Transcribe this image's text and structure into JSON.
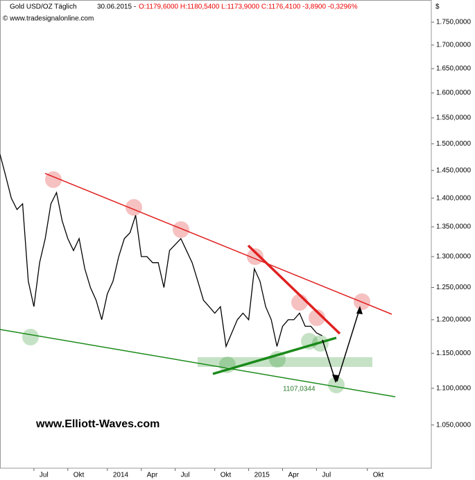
{
  "chart_data": {
    "type": "line",
    "instrument": "Gold USD/OZ Täglich",
    "date": "30.06.2015 -",
    "quote": "O:1179,6000 H:1180,5400 L:1173,9000 C:1176,4100 -3,8900 -0,3296%",
    "source": "© www.tradesignalonline.com",
    "y_unit": "$",
    "watermark": "www.Elliott-Waves.com",
    "annotation": "1107,0344",
    "log_scale": true,
    "grid": false,
    "color": "#000000",
    "categories": [
      null,
      null,
      null,
      null,
      null,
      null,
      "Jul",
      null,
      null,
      null,
      null,
      null,
      "Okt",
      null,
      null,
      null,
      null,
      null,
      null,
      "2014",
      null,
      null,
      null,
      null,
      null,
      "Apr",
      null,
      null,
      null,
      null,
      null,
      "Jul",
      null,
      null,
      null,
      null,
      null,
      null,
      "Okt",
      null,
      null,
      null,
      null,
      null,
      "2015",
      null,
      null,
      null,
      null,
      null,
      "Apr",
      null,
      null,
      null,
      null,
      null,
      "Jul",
      null,
      null,
      null,
      null,
      null,
      null,
      null,
      null,
      "Okt",
      null,
      null,
      null,
      null,
      null,
      null,
      null,
      null,
      null,
      null,
      null
    ],
    "values": [
      1480,
      1440,
      1400,
      1380,
      1390,
      1260,
      1220,
      1290,
      1330,
      1390,
      1410,
      1360,
      1330,
      1310,
      1330,
      1280,
      1250,
      1230,
      1200,
      1240,
      1260,
      1300,
      1330,
      1340,
      1370,
      1300,
      1300,
      1290,
      1290,
      1250,
      1310,
      1320,
      1330,
      1310,
      1290,
      1260,
      1230,
      1220,
      1210,
      1220,
      1160,
      1180,
      1200,
      1210,
      1200,
      1280,
      1260,
      1220,
      1200,
      1160,
      1190,
      1200,
      1200,
      1210,
      1190,
      1190,
      1180,
      1176,
      null,
      null,
      null,
      null,
      null,
      null,
      null,
      null,
      null,
      null,
      null,
      null,
      null,
      null,
      null,
      null,
      null,
      null,
      null
    ],
    "ylim": [
      994,
      1800
    ],
    "yticks": [
      {
        "value": 1050,
        "label": "1.050,0000"
      },
      {
        "value": 1100,
        "label": "1.100,0000"
      },
      {
        "value": 1150,
        "label": "1.150,0000"
      },
      {
        "value": 1200,
        "label": "1.200,0000"
      },
      {
        "value": 1250,
        "label": "1.250,0000"
      },
      {
        "value": 1300,
        "label": "1.300,0000"
      },
      {
        "value": 1350,
        "label": "1.350,0000"
      },
      {
        "value": 1400,
        "label": "1.400,0000"
      },
      {
        "value": 1450,
        "label": "1.450,0000"
      },
      {
        "value": 1500,
        "label": "1.500,0000"
      },
      {
        "value": 1550,
        "label": "1.550,0000"
      },
      {
        "value": 1600,
        "label": "1.600,0000"
      },
      {
        "value": 1650,
        "label": "1.650,0000"
      },
      {
        "value": 1700,
        "label": "1.700,0000"
      },
      {
        "value": 1750,
        "label": "1.750,0000"
      }
    ]
  }
}
